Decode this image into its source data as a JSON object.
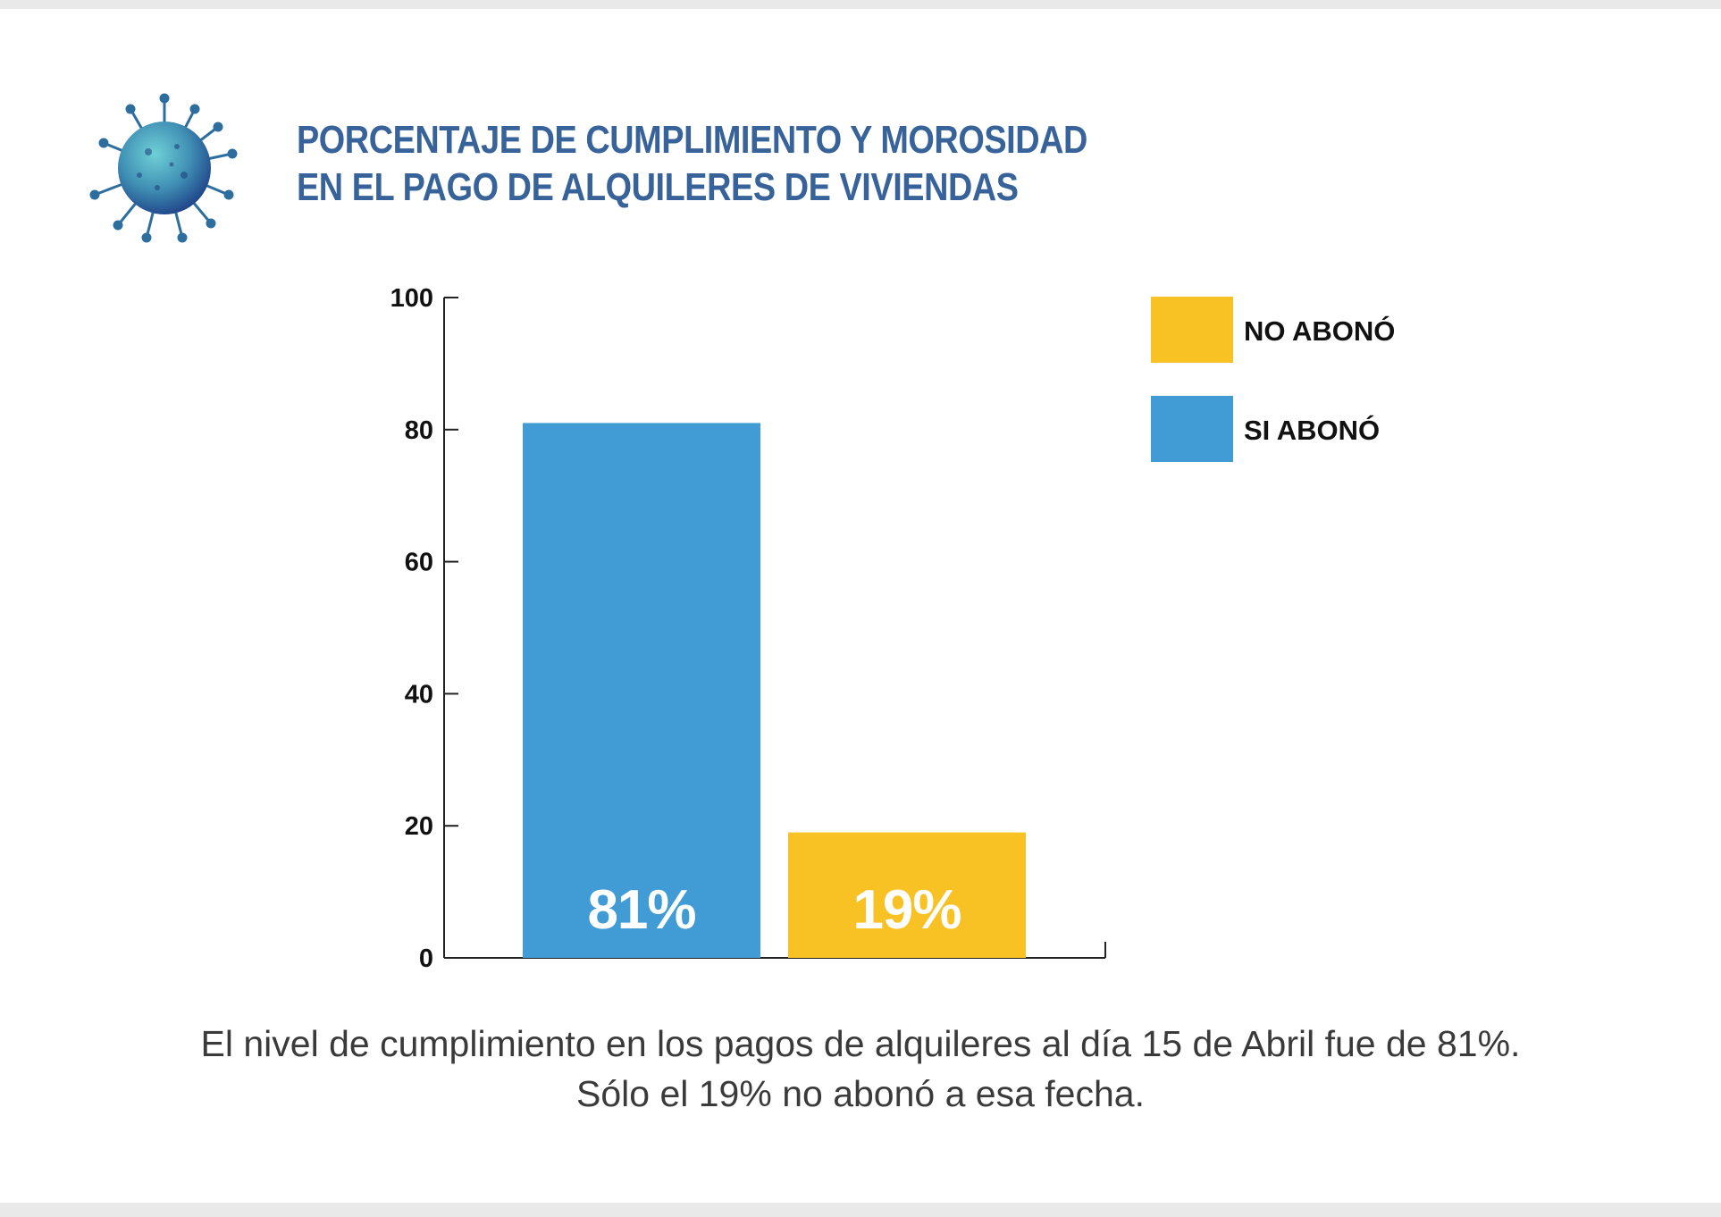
{
  "title": {
    "line1": "PORCENTAJE DE CUMPLIMIENTO Y MOROSIDAD",
    "line2": "EN EL PAGO DE ALQUILERES DE VIVIENDAS"
  },
  "caption": {
    "line1": "El nivel de cumplimiento en los pagos de alquileres al día 15 de Abril fue de 81%.",
    "line2": "Sólo el 19% no abonó a esa fecha."
  },
  "icon": "virus-icon",
  "colors": {
    "title": "#37639a",
    "si_abono": "#419cd6",
    "no_abono": "#f8c124"
  },
  "chart_data": {
    "type": "bar",
    "categories": [
      "SI ABONÓ",
      "NO ABONÓ"
    ],
    "values": [
      81,
      19
    ],
    "data_labels": [
      "81%",
      "19%"
    ],
    "ylim": [
      0,
      100
    ],
    "yticks": [
      0,
      20,
      40,
      60,
      80,
      100
    ],
    "ytick_labels": [
      "0",
      "20",
      "40",
      "60",
      "80",
      "100"
    ],
    "grid": false,
    "legend": {
      "placement": "top-right",
      "entries": [
        {
          "name": "NO ABONÓ",
          "color": "#f8c124"
        },
        {
          "name": "SI ABONÓ",
          "color": "#419cd6"
        }
      ]
    }
  }
}
